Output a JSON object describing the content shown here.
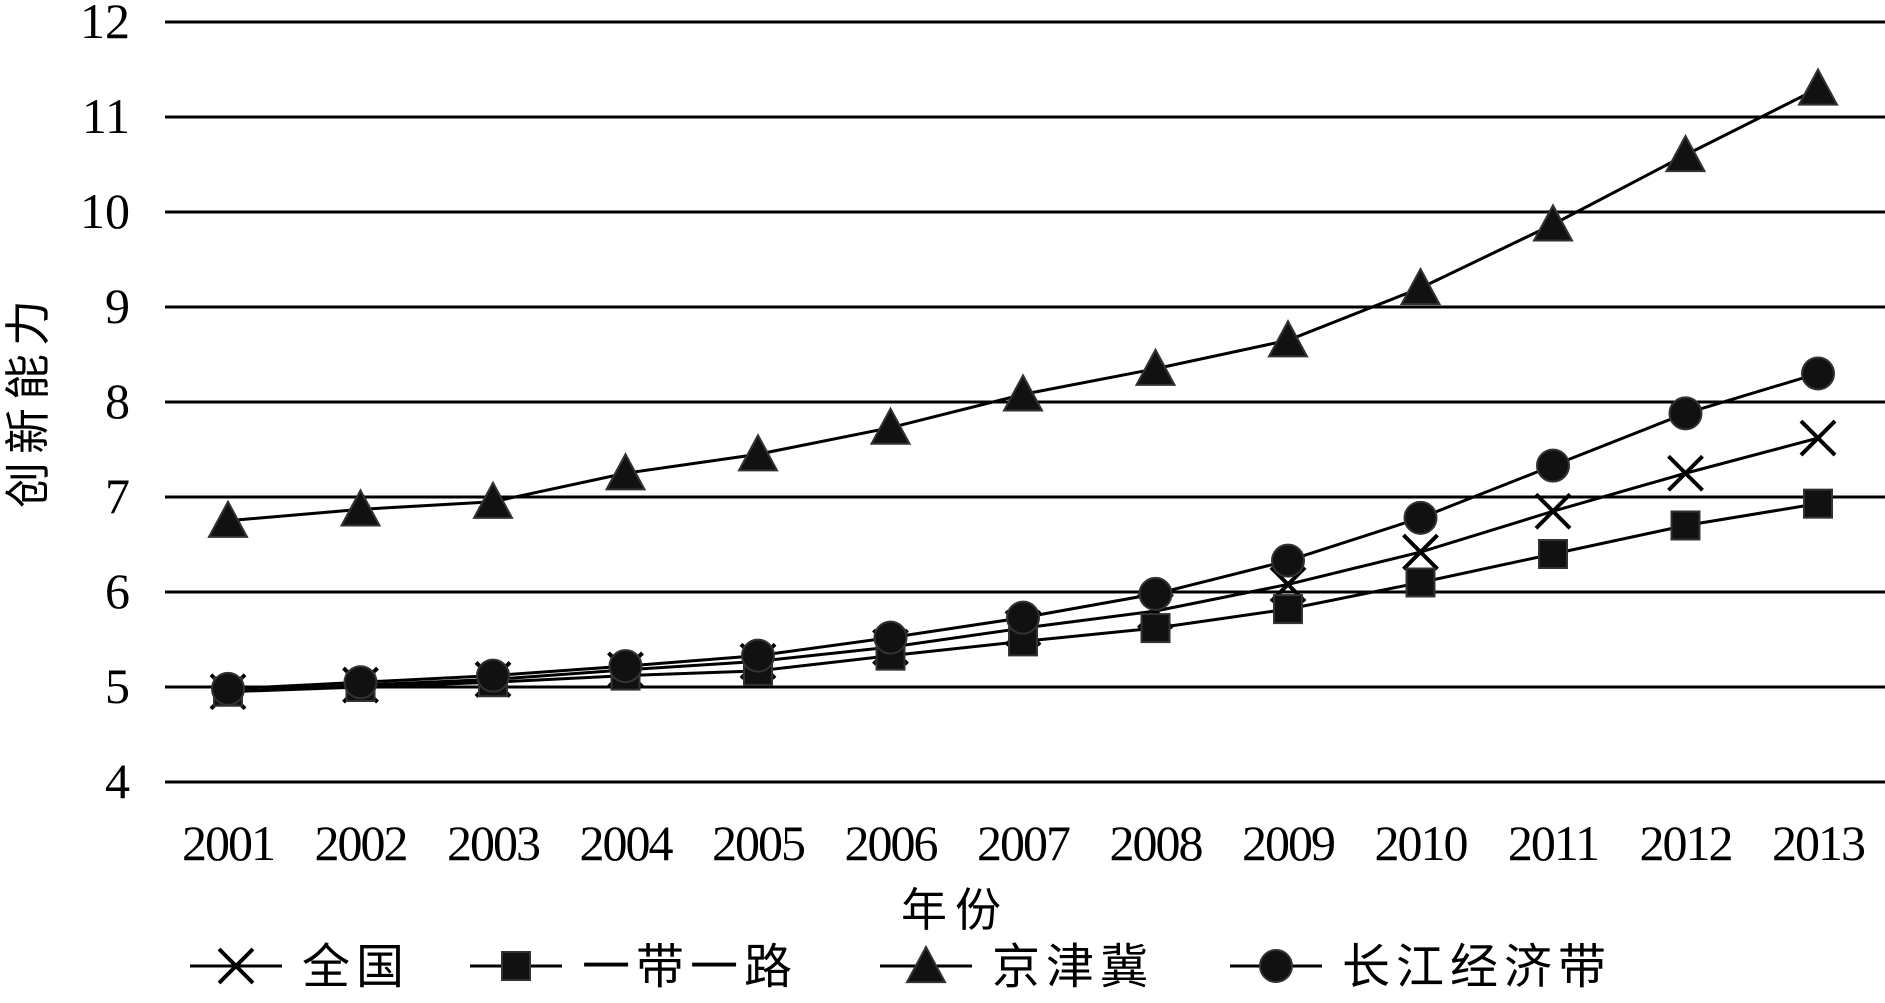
{
  "chart_data": {
    "type": "line",
    "title": "",
    "xlabel": "年份",
    "ylabel": "创新能力",
    "categories": [
      "2001",
      "2002",
      "2003",
      "2004",
      "2005",
      "2006",
      "2007",
      "2008",
      "2009",
      "2010",
      "2011",
      "2012",
      "2013"
    ],
    "ylim": [
      4,
      12
    ],
    "yticks": [
      4,
      5,
      6,
      7,
      8,
      9,
      10,
      11,
      12
    ],
    "grid": true,
    "legend_position": "bottom",
    "line_color": "#000000",
    "series": [
      {
        "name": "全国",
        "marker": "x",
        "values": [
          4.95,
          5.02,
          5.08,
          5.18,
          5.27,
          5.42,
          5.62,
          5.8,
          6.08,
          6.42,
          6.85,
          7.25,
          7.62
        ]
      },
      {
        "name": "一带一路",
        "marker": "square",
        "values": [
          4.95,
          5.0,
          5.05,
          5.12,
          5.17,
          5.33,
          5.48,
          5.62,
          5.82,
          6.1,
          6.4,
          6.7,
          6.93
        ]
      },
      {
        "name": "京津冀",
        "marker": "triangle",
        "values": [
          6.75,
          6.87,
          6.95,
          7.25,
          7.45,
          7.73,
          8.08,
          8.35,
          8.65,
          9.2,
          9.87,
          10.6,
          11.3
        ]
      },
      {
        "name": "长江经济带",
        "marker": "circle",
        "values": [
          4.98,
          5.05,
          5.12,
          5.22,
          5.33,
          5.52,
          5.73,
          5.98,
          6.33,
          6.78,
          7.33,
          7.88,
          8.3
        ]
      }
    ]
  }
}
